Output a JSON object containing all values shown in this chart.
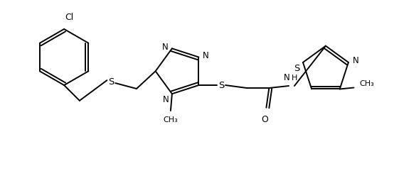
{
  "bg_color": "#ffffff",
  "line_color": "#000000",
  "lw": 1.4,
  "fs": 8.5,
  "figsize": [
    5.54,
    2.48
  ],
  "dpi": 100,
  "xlim": [
    0,
    554
  ],
  "ylim": [
    0,
    248
  ]
}
